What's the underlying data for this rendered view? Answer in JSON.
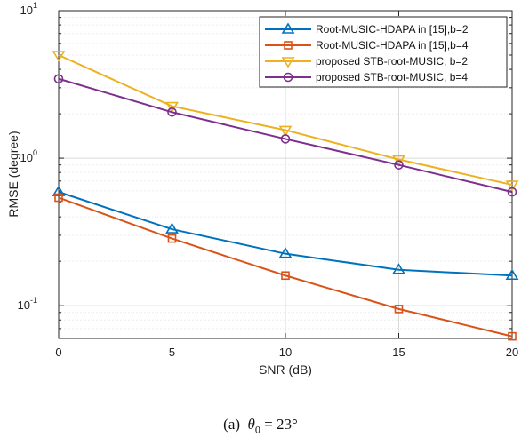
{
  "chart_data": {
    "type": "line",
    "xlabel": "SNR (dB)",
    "ylabel": "RMSE (degree)",
    "x": [
      0,
      5,
      10,
      15,
      20
    ],
    "xticks": [
      "0",
      "5",
      "10",
      "15",
      "20"
    ],
    "xlim": [
      0,
      20
    ],
    "ylim": [
      0.06,
      10
    ],
    "yscale": "log",
    "ytick_bases": [
      "10",
      "10",
      "10"
    ],
    "ytick_exps": [
      "-1",
      "0",
      "1"
    ],
    "ytick_values": [
      0.1,
      1,
      10
    ],
    "grid": true,
    "legend_position": "top-right",
    "series": [
      {
        "name": "Root-MUSIC-HDAPA in [15],b=2",
        "color": "#0072BD",
        "marker": "triangle-up",
        "values": [
          0.59,
          0.33,
          0.225,
          0.175,
          0.16
        ]
      },
      {
        "name": "Root-MUSIC-HDAPA in [15],b=4",
        "color": "#D95319",
        "marker": "square",
        "values": [
          0.54,
          0.285,
          0.16,
          0.095,
          0.062
        ]
      },
      {
        "name": "proposed STB-root-MUSIC, b=2",
        "color": "#EDB120",
        "marker": "triangle-down",
        "values": [
          5.0,
          2.25,
          1.55,
          0.98,
          0.66
        ]
      },
      {
        "name": "proposed STB-root-MUSIC, b=4",
        "color": "#7E2F8E",
        "marker": "circle",
        "values": [
          3.45,
          2.05,
          1.35,
          0.9,
          0.59
        ]
      }
    ]
  },
  "caption": {
    "label": "(a)",
    "symbol": "θ",
    "subscript": "0",
    "equals": "=",
    "value": "23°"
  }
}
